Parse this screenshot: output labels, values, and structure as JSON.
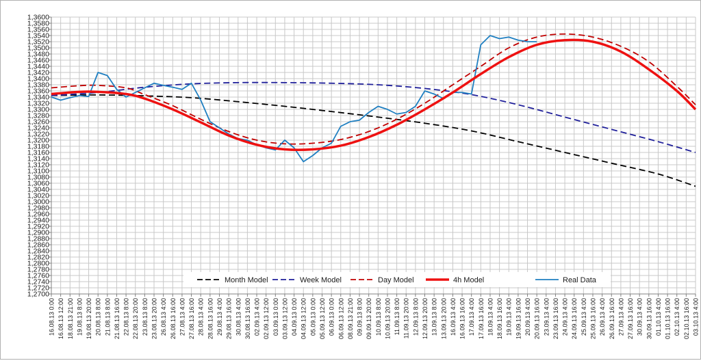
{
  "chart_data": {
    "type": "line",
    "title": "",
    "xlabel": "",
    "ylabel": "",
    "ylim": [
      1.27,
      1.36
    ],
    "y_ticks": [
      "1,2700",
      "1,2720",
      "1,2740",
      "1,2760",
      "1,2780",
      "1,2800",
      "1,2820",
      "1,2840",
      "1,2860",
      "1,2880",
      "1,2900",
      "1,2920",
      "1,2940",
      "1,2960",
      "1,2980",
      "1,3000",
      "1,3020",
      "1,3040",
      "1,3060",
      "1,3080",
      "1,3100",
      "1,3120",
      "1,3140",
      "1,3160",
      "1,3180",
      "1,3200",
      "1,3220",
      "1,3240",
      "1,3260",
      "1,3280",
      "1,3300",
      "1,3320",
      "1,3340",
      "1,3360",
      "1,3380",
      "1,3400",
      "1,3420",
      "1,3440",
      "1,3460",
      "1,3480",
      "1,3500",
      "1,3520",
      "1,3540",
      "1,3560",
      "1,3580",
      "1,3600"
    ],
    "x_ticks": [
      "16.08.13 0:00",
      "16.08.13 12:00",
      "18.08.13 21:00",
      "19.08.13 8:00",
      "19.08.13 20:00",
      "20.08.13 8:00",
      "21.08.13 8:00",
      "21.08.13 16:00",
      "22.08.13 8:00",
      "22.08.13 20:00",
      "23.08.13 8:00",
      "23.08.13 20:00",
      "26.08.13 4:00",
      "26.08.13 16:00",
      "27.08.13 4:00",
      "27.08.13 16:00",
      "28.08.13 4:00",
      "28.08.13 16:00",
      "29.08.13 4:00",
      "29.08.13 16:00",
      "30.08.13 4:00",
      "30.08.13 16:00",
      "02.09.13 4:00",
      "02.09.13 12:00",
      "03.09.13 0:00",
      "03.09.13 12:00",
      "04.09.13 0:00",
      "04.09.13 12:00",
      "05.09.13 0:00",
      "05.09.13 12:00",
      "06.09.13 0:00",
      "06.09.13 12:00",
      "08.09.13 21:00",
      "09.09.13 8:00",
      "09.09.13 20:00",
      "10.09.13 8:00",
      "10.09.13 20:00",
      "11.09.13 8:00",
      "11.09.13 20:00",
      "12.09.13 8:00",
      "12.09.13 20:00",
      "13.09.13 8:00",
      "13.09.13 20:00",
      "16.09.13 4:00",
      "16.09.13 16:00",
      "17.09.13 4:00",
      "17.09.13 16:00",
      "18.09.13 4:00",
      "18.09.13 16:00",
      "19.09.13 4:00",
      "19.09.13 16:00",
      "20.09.13 4:00",
      "20.09.13 16:00",
      "23.09.13 4:00",
      "23.09.13 16:00",
      "24.09.13 4:00",
      "24.09.13 16:00",
      "25.09.13 4:00",
      "25.09.13 16:00",
      "26.09.13 4:00",
      "26.09.13 16:00",
      "27.09.13 4:00",
      "27.09.13 16:00",
      "30.09.13 4:00",
      "30.09.13 16:00",
      "01.10.13 4:00",
      "01.10.13 16:00",
      "02.10.13 4:00",
      "02.10.13 16:00",
      "03.10.13 4:00"
    ],
    "grid": true,
    "legend_position": "bottom",
    "series": [
      {
        "name": "Month Model",
        "color": "#000000",
        "style": "dash",
        "x_index": [
          0,
          5,
          10,
          15,
          20,
          25,
          30,
          35,
          40,
          45,
          50,
          55,
          60,
          65,
          69
        ],
        "values": [
          1.3345,
          1.3347,
          1.3344,
          1.3338,
          1.3325,
          1.331,
          1.3293,
          1.3275,
          1.3255,
          1.323,
          1.3195,
          1.316,
          1.3125,
          1.309,
          1.305
        ]
      },
      {
        "name": "Week Model",
        "color": "#1f1f9a",
        "style": "dash",
        "x_index": [
          0,
          5,
          10,
          15,
          20,
          25,
          30,
          35,
          40,
          45,
          50,
          55,
          60,
          65,
          69
        ],
        "values": [
          1.3345,
          1.3355,
          1.3372,
          1.3383,
          1.3387,
          1.3387,
          1.3385,
          1.338,
          1.3368,
          1.3348,
          1.3315,
          1.3275,
          1.3235,
          1.3195,
          1.316
        ]
      },
      {
        "name": "Day Model",
        "color": "#c00000",
        "style": "dash",
        "x_index": [
          0,
          3,
          5,
          8,
          10,
          13,
          16,
          19,
          22,
          25,
          28,
          31,
          34,
          37,
          40,
          43,
          46,
          49,
          52,
          55,
          58,
          61,
          64,
          67,
          69
        ],
        "values": [
          1.337,
          1.3377,
          1.3378,
          1.337,
          1.3348,
          1.3312,
          1.3268,
          1.3228,
          1.32,
          1.3188,
          1.319,
          1.3202,
          1.3228,
          1.3268,
          1.332,
          1.338,
          1.344,
          1.35,
          1.3535,
          1.3545,
          1.3535,
          1.3505,
          1.3455,
          1.3375,
          1.3315
        ]
      },
      {
        "name": "4h Model",
        "color": "#ee1111",
        "style": "solid",
        "x_index": [
          0,
          3,
          5,
          8,
          10,
          13,
          16,
          19,
          22,
          25,
          28,
          31,
          34,
          37,
          40,
          43,
          46,
          49,
          52,
          55,
          58,
          61,
          64,
          67,
          69
        ],
        "values": [
          1.335,
          1.3357,
          1.3357,
          1.335,
          1.3335,
          1.33,
          1.3258,
          1.3215,
          1.3185,
          1.317,
          1.317,
          1.3182,
          1.321,
          1.325,
          1.33,
          1.3355,
          1.3415,
          1.347,
          1.351,
          1.3525,
          1.352,
          1.3488,
          1.343,
          1.336,
          1.33
        ]
      },
      {
        "name": "Real Data",
        "color": "#1f7fc1",
        "style": "solid",
        "x_index": [
          0,
          1,
          2,
          3,
          4,
          5,
          6,
          7,
          8,
          9,
          10,
          11,
          12,
          13,
          14,
          15,
          16,
          17,
          18,
          19,
          20,
          21,
          22,
          23,
          24,
          25,
          26,
          27,
          28,
          29,
          30,
          31,
          32,
          33,
          34,
          35,
          36,
          37,
          38,
          39,
          40,
          41,
          42,
          43,
          44,
          45,
          46,
          47,
          48,
          49,
          50,
          51,
          52
        ],
        "values": [
          1.334,
          1.333,
          1.3338,
          1.3345,
          1.3342,
          1.342,
          1.341,
          1.3365,
          1.334,
          1.3355,
          1.337,
          1.3385,
          1.3378,
          1.3372,
          1.3365,
          1.3385,
          1.333,
          1.326,
          1.324,
          1.322,
          1.3205,
          1.32,
          1.3185,
          1.3175,
          1.3168,
          1.32,
          1.3175,
          1.313,
          1.315,
          1.3175,
          1.319,
          1.3245,
          1.326,
          1.3265,
          1.329,
          1.331,
          1.33,
          1.3285,
          1.329,
          1.331,
          1.336,
          1.335,
          1.3335,
          1.3355,
          1.3355,
          1.335,
          1.351,
          1.354,
          1.353,
          1.3535,
          1.3525,
          1.352,
          1.352
        ]
      }
    ]
  }
}
